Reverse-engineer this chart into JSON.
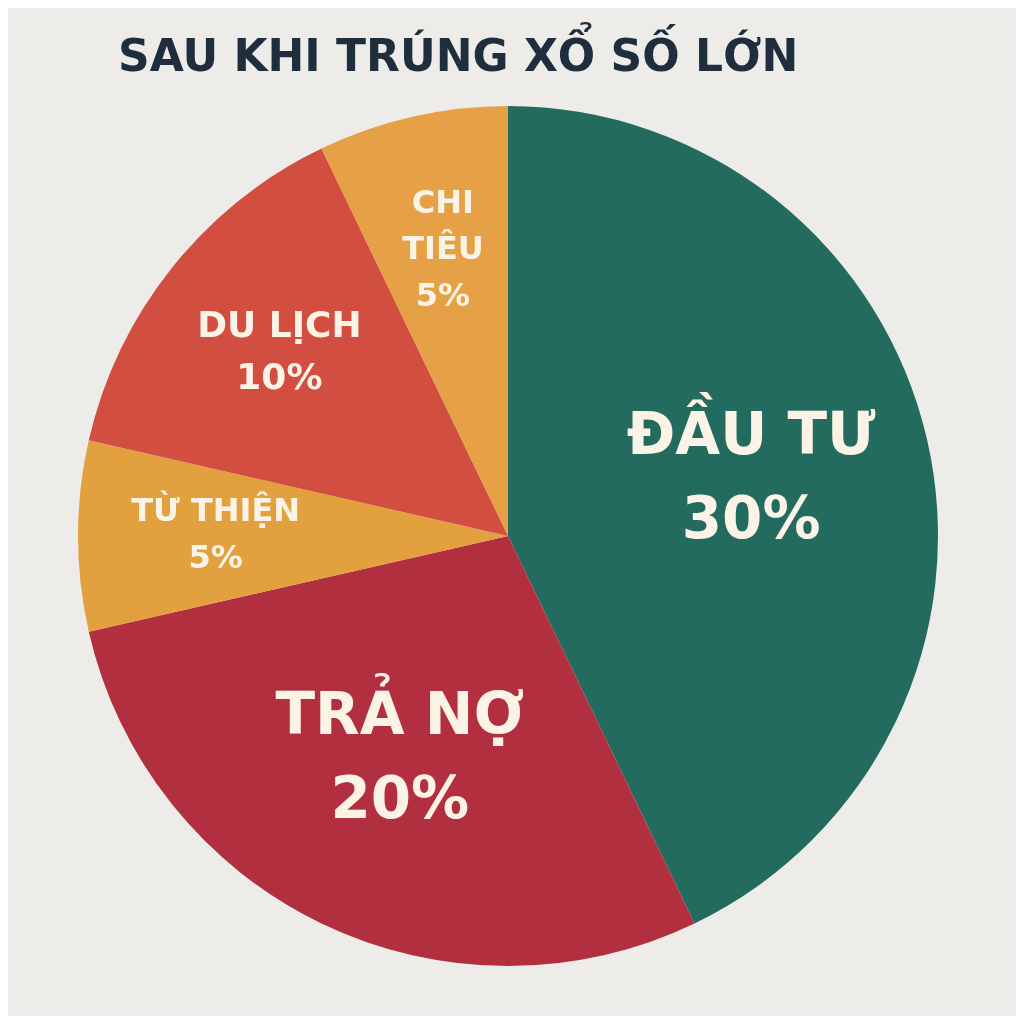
{
  "chart_data": {
    "type": "pie",
    "title": "SAU KHI TRÚNG XỔ SỐ LỚN",
    "categories": [
      "ĐẦU TƯ",
      "TRẢ NỢ",
      "TỪ THIỆN",
      "DU LỊCH",
      "CHI TIÊU"
    ],
    "values": [
      30,
      20,
      5,
      10,
      5
    ],
    "value_labels": [
      "30%",
      "20%",
      "5%",
      "10%",
      "5%"
    ],
    "colors": [
      "#236b5e",
      "#b22f40",
      "#e3a03e",
      "#d24e40",
      "#e6a045"
    ],
    "legend": false
  }
}
